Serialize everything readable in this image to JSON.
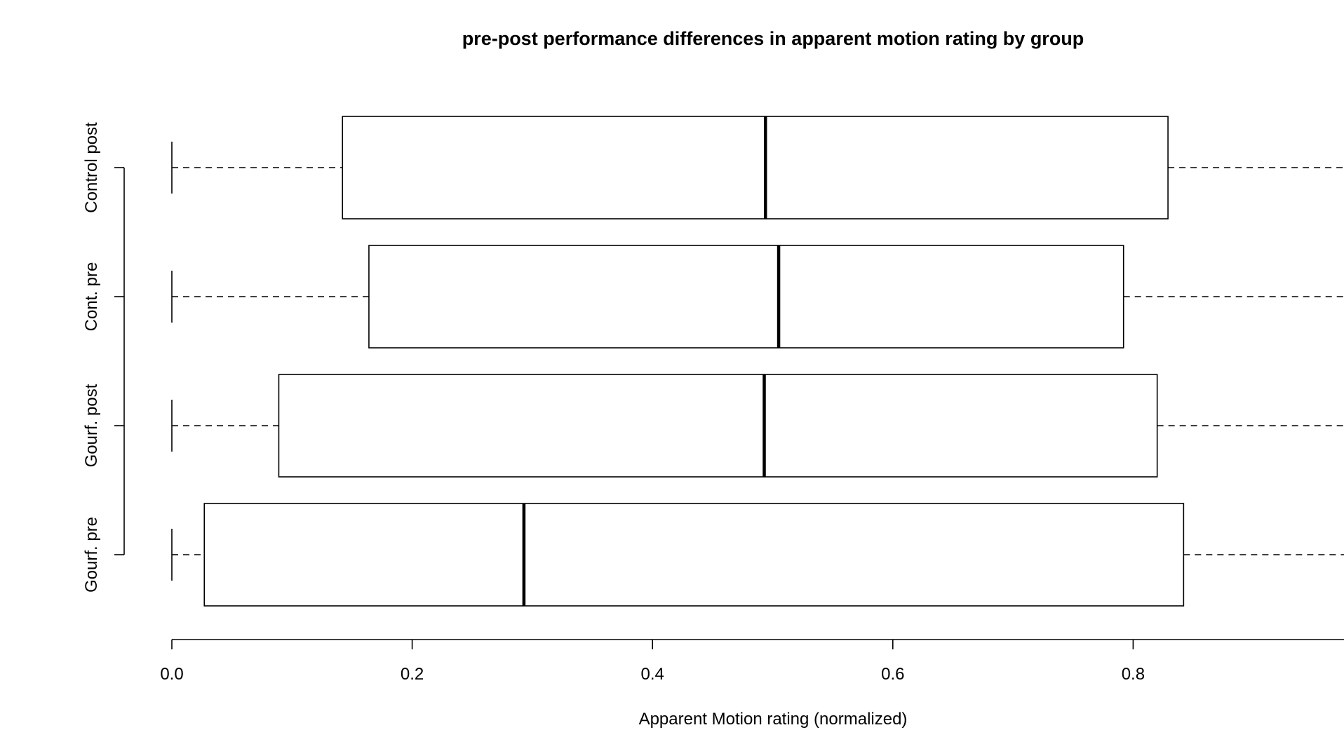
{
  "chart_data": {
    "type": "boxplot",
    "orientation": "horizontal",
    "title": "pre-post performance differences in apparent motion rating by group",
    "xlabel": "Apparent Motion rating (normalized)",
    "ylabel": "",
    "xlim": [
      0.0,
      1.0
    ],
    "x_ticks": [
      0.0,
      0.2,
      0.4,
      0.6,
      0.8
    ],
    "x_tick_labels": [
      "0.0",
      "0.2",
      "0.4",
      "0.6",
      "0.8"
    ],
    "grid": false,
    "categories": [
      "Gourf. pre",
      "Gourf. post",
      "Cont. pre",
      "Control post"
    ],
    "boxes": [
      {
        "name": "Gourf. pre",
        "whisker_low": 0.0,
        "q1": 0.027,
        "median": 0.293,
        "q3": 0.842,
        "whisker_high": 1.0
      },
      {
        "name": "Gourf. post",
        "whisker_low": 0.0,
        "q1": 0.089,
        "median": 0.493,
        "q3": 0.82,
        "whisker_high": 1.0
      },
      {
        "name": "Cont. pre",
        "whisker_low": 0.0,
        "q1": 0.164,
        "median": 0.505,
        "q3": 0.792,
        "whisker_high": 1.0
      },
      {
        "name": "Control post",
        "whisker_low": 0.0,
        "q1": 0.142,
        "median": 0.494,
        "q3": 0.829,
        "whisker_high": 1.0
      }
    ]
  }
}
